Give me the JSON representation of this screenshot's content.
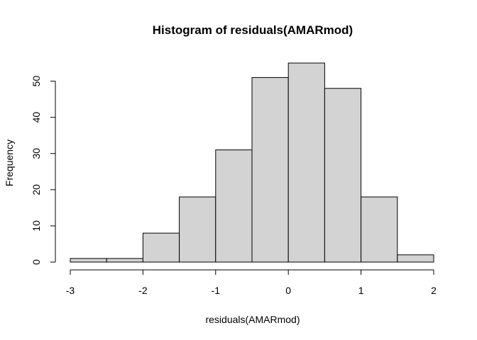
{
  "chart_data": {
    "type": "bar",
    "title": "Histogram of residuals(AMARmod)",
    "xlabel": "residuals(AMARmod)",
    "ylabel": "Frequency",
    "bins": [
      {
        "x0": -3.0,
        "x1": -2.5,
        "count": 1
      },
      {
        "x0": -2.5,
        "x1": -2.0,
        "count": 1
      },
      {
        "x0": -2.0,
        "x1": -1.5,
        "count": 8
      },
      {
        "x0": -1.5,
        "x1": -1.0,
        "count": 18
      },
      {
        "x0": -1.0,
        "x1": -0.5,
        "count": 31
      },
      {
        "x0": -0.5,
        "x1": 0.0,
        "count": 51
      },
      {
        "x0": 0.0,
        "x1": 0.5,
        "count": 55
      },
      {
        "x0": 0.5,
        "x1": 1.0,
        "count": 48
      },
      {
        "x0": 1.0,
        "x1": 1.5,
        "count": 18
      },
      {
        "x0": 1.5,
        "x1": 2.0,
        "count": 2
      }
    ],
    "xlim": [
      -3,
      2
    ],
    "ylim": [
      0,
      55
    ],
    "xticks": [
      {
        "value": -3,
        "label": "-3"
      },
      {
        "value": -2,
        "label": "-2"
      },
      {
        "value": -1,
        "label": "-1"
      },
      {
        "value": 0,
        "label": "0"
      },
      {
        "value": 1,
        "label": "1"
      },
      {
        "value": 2,
        "label": "2"
      }
    ],
    "yticks": [
      {
        "value": 0,
        "label": "0"
      },
      {
        "value": 10,
        "label": "10"
      },
      {
        "value": 20,
        "label": "20"
      },
      {
        "value": 30,
        "label": "30"
      },
      {
        "value": 40,
        "label": "40"
      },
      {
        "value": 50,
        "label": "50"
      }
    ],
    "grid": false,
    "bar_color": "#d3d3d3",
    "edge_color": "#000000"
  }
}
